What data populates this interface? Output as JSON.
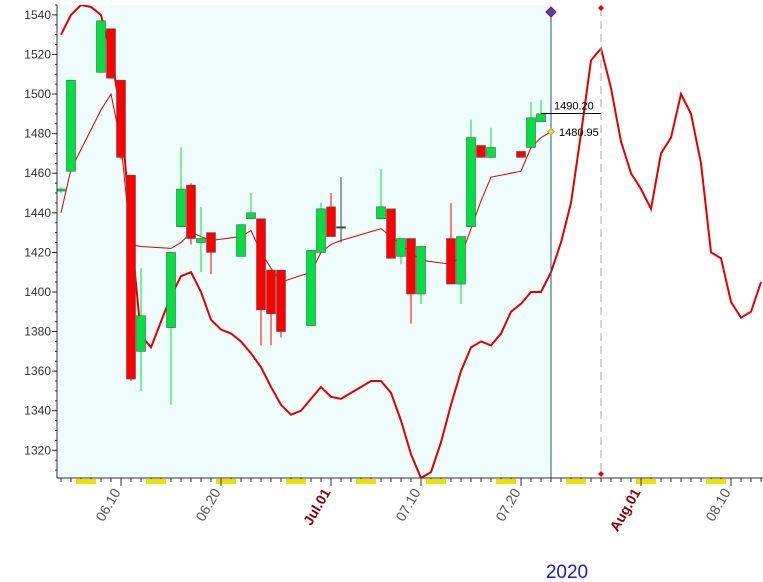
{
  "chart_data": {
    "type": "candlestick",
    "year_label": "2020",
    "xlim": [
      "2020-06-03T14:24",
      "2020-08-13T04:48"
    ],
    "ylim": [
      1306,
      1545
    ],
    "yticks": [
      1320,
      1340,
      1360,
      1380,
      1400,
      1420,
      1440,
      1460,
      1480,
      1500,
      1520,
      1540
    ],
    "xticks": [
      {
        "value": "2020-06-10",
        "label": "06.10",
        "color": "#555555"
      },
      {
        "value": "2020-06-20",
        "label": "06.20",
        "color": "#555555"
      },
      {
        "value": "2020-07-01",
        "label": "Jul.01",
        "color": "#8b0000"
      },
      {
        "value": "2020-07-10",
        "label": "07.10",
        "color": "#555555"
      },
      {
        "value": "2020-07-20",
        "label": "07.20",
        "color": "#555555"
      },
      {
        "value": "2020-08-01",
        "label": "Aug.01",
        "color": "#8b0000"
      },
      {
        "value": "2020-08-10",
        "label": "08.10",
        "color": "#555555"
      }
    ],
    "shade_until": "2020-07-23",
    "shade_color": "#effcfc",
    "forecast_start": "2020-07-28",
    "up_color": "#00e040",
    "down_color": "#ff0000",
    "candles": {
      "x": [
        "2020-06-04",
        "2020-06-05",
        "2020-06-08",
        "2020-06-09",
        "2020-06-10",
        "2020-06-11",
        "2020-06-12",
        "2020-06-15",
        "2020-06-16",
        "2020-06-17",
        "2020-06-18",
        "2020-06-19",
        "2020-06-22",
        "2020-06-23",
        "2020-06-24",
        "2020-06-25",
        "2020-06-26",
        "2020-06-29",
        "2020-06-30",
        "2020-07-01",
        "2020-07-02",
        "2020-07-06",
        "2020-07-07",
        "2020-07-08",
        "2020-07-09",
        "2020-07-10",
        "2020-07-13",
        "2020-07-14",
        "2020-07-15",
        "2020-07-16",
        "2020-07-17",
        "2020-07-20",
        "2020-07-21",
        "2020-07-22"
      ],
      "open": [
        1451,
        1461,
        1511,
        1533,
        1507,
        1459,
        1370,
        1382,
        1433,
        1454,
        1425,
        1430,
        1418,
        1437,
        1437,
        1411,
        1411,
        1383,
        1420,
        1443,
        1433,
        1437,
        1442,
        1418,
        1427,
        1399,
        1427,
        1404,
        1433,
        1474,
        1468,
        1471,
        1473,
        1486
      ],
      "high": [
        1453,
        1507,
        1537,
        1533,
        1507,
        1459,
        1412,
        1420,
        1473,
        1455,
        1443,
        1430,
        1434,
        1450,
        1437,
        1411,
        1411,
        1421,
        1445,
        1450,
        1458,
        1462,
        1442,
        1427,
        1427,
        1423,
        1445,
        1428,
        1487,
        1474,
        1483,
        1471,
        1496,
        1497
      ],
      "low": [
        1450,
        1461,
        1511,
        1508,
        1467,
        1355,
        1350,
        1343,
        1433,
        1424,
        1410,
        1409,
        1418,
        1437,
        1373,
        1373,
        1377,
        1383,
        1420,
        1428,
        1425,
        1437,
        1417,
        1414,
        1384,
        1394,
        1404,
        1394,
        1433,
        1468,
        1468,
        1468,
        1473,
        1486
      ],
      "close": [
        1452,
        1507,
        1537,
        1508,
        1468,
        1356,
        1388,
        1420,
        1452,
        1427,
        1427,
        1420,
        1434,
        1440,
        1391,
        1389,
        1380,
        1421,
        1442,
        1428,
        1433,
        1443,
        1417,
        1427,
        1399,
        1423,
        1404,
        1428,
        1478,
        1468,
        1473,
        1468,
        1488,
        1490
      ]
    },
    "series": [
      {
        "color": "#d40000",
        "width": 1,
        "x": [
          "2020-06-04",
          "2020-06-05",
          "2020-06-08",
          "2020-06-09",
          "2020-06-10",
          "2020-06-11",
          "2020-06-12",
          "2020-06-15",
          "2020-06-16",
          "2020-06-17",
          "2020-06-18",
          "2020-06-19",
          "2020-06-22",
          "2020-06-23",
          "2020-06-24",
          "2020-06-25",
          "2020-06-26",
          "2020-06-29",
          "2020-06-30",
          "2020-07-01",
          "2020-07-02",
          "2020-07-06",
          "2020-07-07",
          "2020-07-08",
          "2020-07-09",
          "2020-07-10",
          "2020-07-13",
          "2020-07-14",
          "2020-07-15",
          "2020-07-16",
          "2020-07-17",
          "2020-07-20",
          "2020-07-21",
          "2020-07-22",
          "2020-07-23"
        ],
        "values": [
          1440,
          1462,
          1492,
          1500,
          1475,
          1424,
          1423,
          1422,
          1425,
          1430,
          1428,
          1426,
          1428,
          1431,
          1420,
          1412,
          1405,
          1410,
          1420,
          1424,
          1426,
          1432,
          1428,
          1424,
          1420,
          1416,
          1414,
          1418,
          1432,
          1446,
          1458,
          1461,
          1473,
          1478,
          1480.95
        ]
      },
      {
        "color": "#e00000",
        "width": 2,
        "x": [
          "2020-06-04",
          "2020-06-05",
          "2020-06-06",
          "2020-06-07",
          "2020-06-08",
          "2020-06-09",
          "2020-06-10",
          "2020-06-11",
          "2020-06-12",
          "2020-06-13",
          "2020-06-14",
          "2020-06-15",
          "2020-06-16",
          "2020-06-17",
          "2020-06-18",
          "2020-06-19",
          "2020-06-20",
          "2020-06-21",
          "2020-06-22",
          "2020-06-23",
          "2020-06-24",
          "2020-06-25",
          "2020-06-26",
          "2020-06-27",
          "2020-06-28",
          "2020-06-29",
          "2020-06-30",
          "2020-07-01",
          "2020-07-02",
          "2020-07-03",
          "2020-07-04",
          "2020-07-05",
          "2020-07-06",
          "2020-07-07",
          "2020-07-08",
          "2020-07-09",
          "2020-07-10",
          "2020-07-11",
          "2020-07-12",
          "2020-07-13",
          "2020-07-14",
          "2020-07-15",
          "2020-07-16",
          "2020-07-17",
          "2020-07-18",
          "2020-07-19",
          "2020-07-20",
          "2020-07-21",
          "2020-07-22",
          "2020-07-23",
          "2020-07-24",
          "2020-07-25",
          "2020-07-26",
          "2020-07-27",
          "2020-07-28",
          "2020-07-29",
          "2020-07-30",
          "2020-07-31",
          "2020-08-01",
          "2020-08-02",
          "2020-08-03",
          "2020-08-04",
          "2020-08-05",
          "2020-08-06",
          "2020-08-07",
          "2020-08-08",
          "2020-08-09",
          "2020-08-10",
          "2020-08-11",
          "2020-08-12",
          "2020-08-13"
        ],
        "values": [
          1530,
          1540,
          1545,
          1544,
          1540,
          1520,
          1490,
          1430,
          1378,
          1372,
          1385,
          1398,
          1408,
          1410,
          1400,
          1386,
          1381,
          1379,
          1375,
          1369,
          1362,
          1352,
          1343,
          1338,
          1340,
          1346,
          1352,
          1347,
          1346,
          1349,
          1352,
          1355,
          1355,
          1349,
          1335,
          1318,
          1306,
          1309,
          1324,
          1343,
          1360,
          1372,
          1375,
          1373,
          1379,
          1390,
          1394,
          1400,
          1400,
          1410,
          1425,
          1445,
          1480,
          1517,
          1523,
          1503,
          1476,
          1460,
          1452,
          1442,
          1470,
          1478,
          1500,
          1490,
          1465,
          1420,
          1417,
          1395,
          1387,
          1390,
          1405
        ]
      }
    ],
    "price_marker": {
      "value": 1490.2,
      "label": "1490.20"
    },
    "ma_marker": {
      "value": 1480.95,
      "label": "1480.95"
    }
  }
}
